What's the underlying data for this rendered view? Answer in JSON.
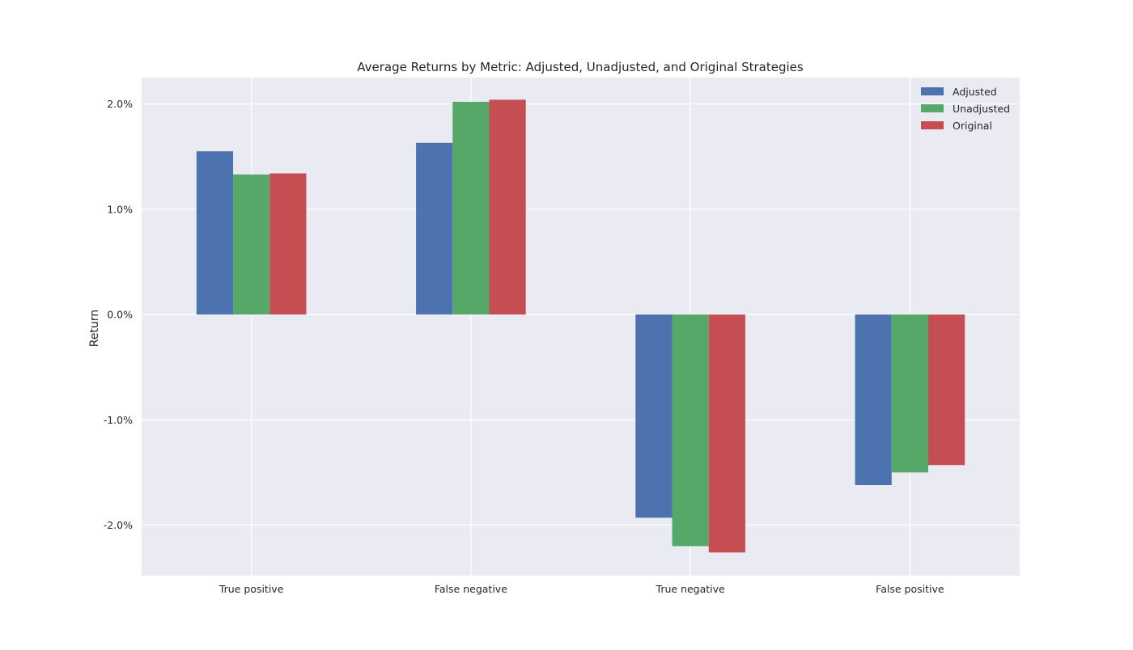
{
  "chart_data": {
    "type": "bar",
    "title": "Average Returns by Metric: Adjusted, Unadjusted, and Original Strategies",
    "xlabel": "",
    "ylabel": "Return",
    "categories": [
      "True positive",
      "False negative",
      "True negative",
      "False positive"
    ],
    "series": [
      {
        "name": "Adjusted",
        "color": "#4c72b0",
        "values": [
          1.55,
          1.63,
          -1.93,
          -1.62
        ]
      },
      {
        "name": "Unadjusted",
        "color": "#55a868",
        "values": [
          1.33,
          2.02,
          -2.2,
          -1.5
        ]
      },
      {
        "name": "Original",
        "color": "#c44e52",
        "values": [
          1.34,
          2.04,
          -2.26,
          -1.43
        ]
      }
    ],
    "ylim": [
      -2.48,
      2.25
    ],
    "yticks": [
      2.0,
      1.0,
      0.0,
      -1.0,
      -2.0
    ],
    "ytick_labels": [
      "2.0%",
      "1.0%",
      "0.0%",
      "-1.0%",
      "-2.0%"
    ],
    "grid": true,
    "legend_position": "top-right",
    "background_color": "#eaeaf2",
    "grid_color": "#ffffff"
  }
}
